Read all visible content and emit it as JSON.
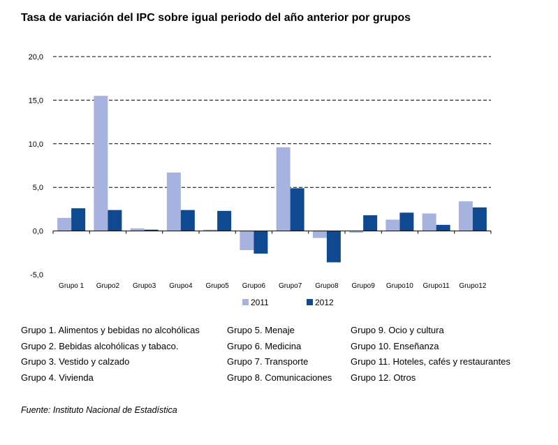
{
  "title": "Tasa de variación del IPC sobre igual periodo del año anterior por grupos",
  "chart_data": {
    "type": "bar",
    "categories": [
      "Grupo 1",
      "Grupo2",
      "Grupo3",
      "Grupo4",
      "Grupo5",
      "Grupo6",
      "Grupo7",
      "Grupo8",
      "Grupo9",
      "Grupo10",
      "Grupo11",
      "Grupo12"
    ],
    "series": [
      {
        "name": "2011",
        "color": "#a6b3df",
        "values": [
          1.5,
          15.5,
          0.3,
          6.7,
          0.15,
          -2.2,
          9.6,
          -0.8,
          -0.2,
          1.3,
          2.0,
          3.4
        ]
      },
      {
        "name": "2012",
        "color": "#0f4a91",
        "values": [
          2.6,
          2.4,
          0.15,
          2.4,
          2.3,
          -2.6,
          4.9,
          -3.6,
          1.8,
          2.1,
          0.7,
          2.7
        ]
      }
    ],
    "yticks": [
      "20,0",
      "15,0",
      "10,0",
      "5,0",
      "0,0",
      "-5,0"
    ],
    "ytick_values": [
      20,
      15,
      10,
      5,
      0,
      -5
    ],
    "ylim": [
      -5,
      20
    ],
    "grid": "dashed horizontal",
    "legend": "bottom-center"
  },
  "key": [
    [
      "Grupo 1. Alimentos y bebidas no alcohólicas",
      "Grupo 5. Menaje",
      "Grupo 9. Ocio y cultura"
    ],
    [
      "Grupo 2. Bebidas alcohólicas y  tabaco.",
      "Grupo 6. Medicina",
      "Grupo 10. Enseñanza"
    ],
    [
      "Grupo 3. Vestido y calzado",
      "Grupo 7. Transporte",
      "Grupo 11. Hoteles, cafés y restaurantes"
    ],
    [
      "Grupo 4. Vivienda",
      "Grupo 8. Comunicaciones",
      "Grupo 12. Otros"
    ]
  ],
  "source": "Fuente: Instituto Nacional de Estadística"
}
